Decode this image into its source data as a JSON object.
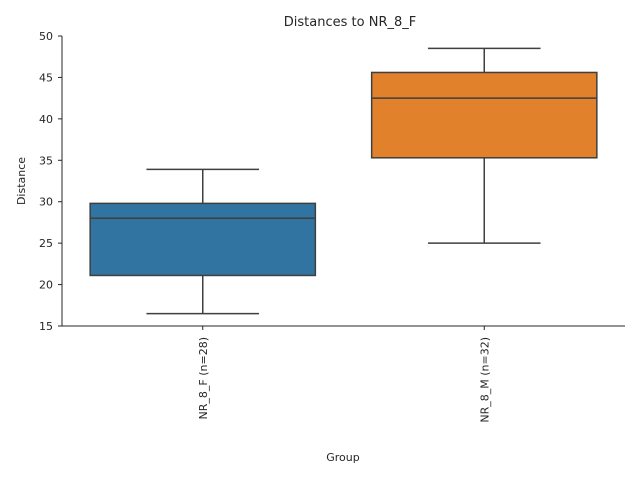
{
  "chart_data": {
    "type": "box",
    "title": "Distances to NR_8_F",
    "xlabel": "Group",
    "ylabel": "Distance",
    "ylim": [
      15,
      50
    ],
    "yticks": [
      15,
      20,
      25,
      30,
      35,
      40,
      45,
      50
    ],
    "grid": false,
    "categories": [
      "NR_8_F (n=28)",
      "NR_8_M (n=32)"
    ],
    "boxes": [
      {
        "category": "NR_8_F (n=28)",
        "whisker_low": 16.5,
        "q1": 21.1,
        "median": 28.0,
        "q3": 29.8,
        "whisker_high": 33.9,
        "color": "#3274a1"
      },
      {
        "category": "NR_8_M (n=32)",
        "whisker_low": 25.0,
        "q1": 35.3,
        "median": 42.5,
        "q3": 45.6,
        "whisker_high": 48.5,
        "color": "#e1812c"
      }
    ]
  }
}
